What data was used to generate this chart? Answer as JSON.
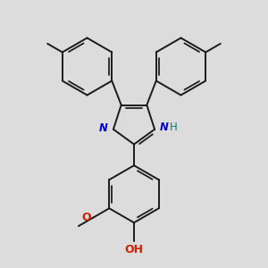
{
  "background_color": "#dcdcdc",
  "bond_color": "#1a1a1a",
  "bond_width": 1.4,
  "N_color": "#0000cc",
  "O_color": "#cc2200",
  "H_color": "#008080",
  "text_color": "#1a1a1a",
  "font_size": 8.5,
  "figsize": [
    3.0,
    3.0
  ],
  "dpi": 100,
  "xlim": [
    -1.8,
    1.8
  ],
  "ylim": [
    -2.3,
    2.3
  ]
}
